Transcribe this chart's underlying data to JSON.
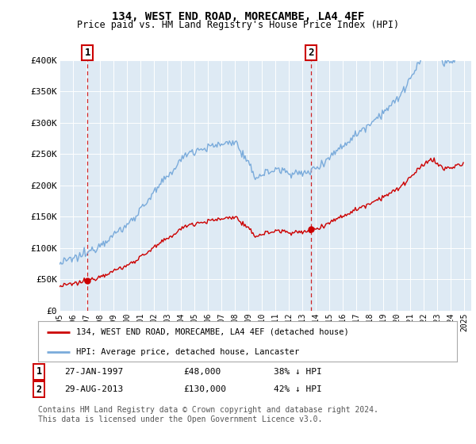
{
  "title": "134, WEST END ROAD, MORECAMBE, LA4 4EF",
  "subtitle": "Price paid vs. HM Land Registry's House Price Index (HPI)",
  "legend_line1": "134, WEST END ROAD, MORECAMBE, LA4 4EF (detached house)",
  "legend_line2": "HPI: Average price, detached house, Lancaster",
  "annotation1_label": "1",
  "annotation1_date": "27-JAN-1997",
  "annotation1_price": "£48,000",
  "annotation1_hpi": "38% ↓ HPI",
  "annotation2_label": "2",
  "annotation2_date": "29-AUG-2013",
  "annotation2_price": "£130,000",
  "annotation2_hpi": "42% ↓ HPI",
  "footer": "Contains HM Land Registry data © Crown copyright and database right 2024.\nThis data is licensed under the Open Government Licence v3.0.",
  "hpi_color": "#7aabdb",
  "price_color": "#cc0000",
  "annotation_color": "#cc0000",
  "background_color": "#deeaf4",
  "ylim": [
    0,
    400000
  ],
  "yticks": [
    0,
    50000,
    100000,
    150000,
    200000,
    250000,
    300000,
    350000,
    400000
  ],
  "ytick_labels": [
    "£0",
    "£50K",
    "£100K",
    "£150K",
    "£200K",
    "£250K",
    "£300K",
    "£350K",
    "£400K"
  ],
  "sale1_x": 1997.07,
  "sale1_y": 48000,
  "sale2_x": 2013.65,
  "sale2_y": 130000,
  "xlim_left": 1995.0,
  "xlim_right": 2025.5
}
